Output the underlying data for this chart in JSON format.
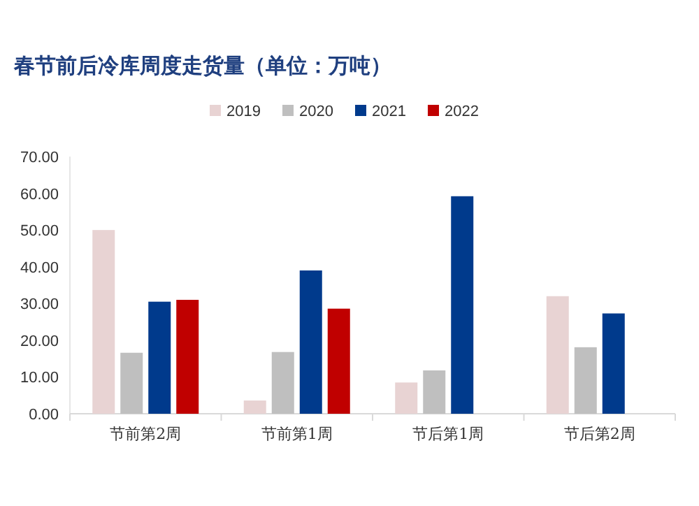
{
  "chart_data": {
    "type": "bar",
    "title": "春节前后冷库周度走货量（单位：万吨）",
    "categories": [
      "节前第2周",
      "节前第1周",
      "节后第1周",
      "节后第2周"
    ],
    "series": [
      {
        "name": "2019",
        "color": "#e8d3d3",
        "values": [
          50.0,
          3.6,
          8.5,
          32.0
        ]
      },
      {
        "name": "2020",
        "color": "#bfbfbf",
        "values": [
          16.6,
          16.8,
          11.8,
          18.1
        ]
      },
      {
        "name": "2021",
        "color": "#003a8c",
        "values": [
          30.5,
          39.0,
          59.2,
          27.3
        ]
      },
      {
        "name": "2022",
        "color": "#c00000",
        "values": [
          31.0,
          28.6,
          null,
          null
        ]
      }
    ],
    "ylim": [
      0,
      70
    ],
    "yticks": [
      {
        "value": 0,
        "label": "0.00"
      },
      {
        "value": 10,
        "label": "10.00"
      },
      {
        "value": 20,
        "label": "20.00"
      },
      {
        "value": 30,
        "label": "30.00"
      },
      {
        "value": 40,
        "label": "40.00"
      },
      {
        "value": 50,
        "label": "50.00"
      },
      {
        "value": 60,
        "label": "60.00"
      },
      {
        "value": 70,
        "label": "70.00"
      }
    ],
    "grid": false,
    "legend": "top"
  }
}
